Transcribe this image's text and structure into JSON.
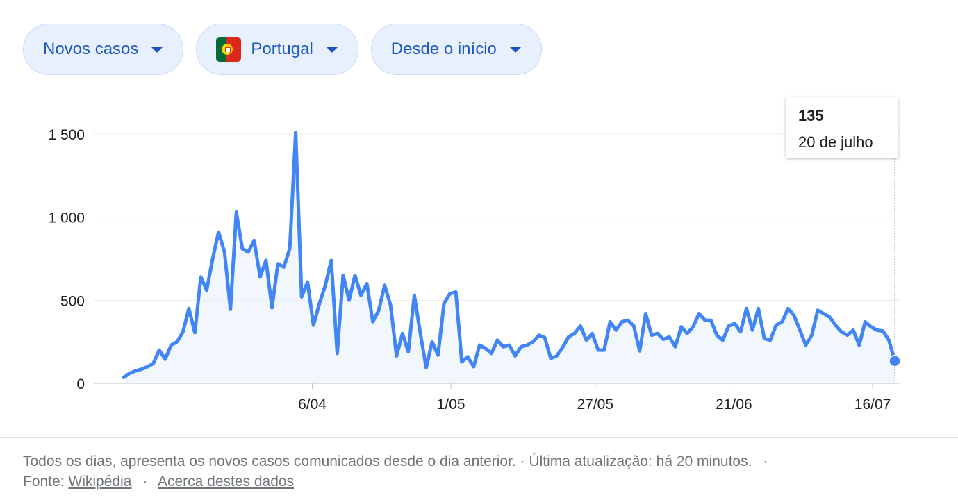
{
  "filters": {
    "metric": "Novos casos",
    "country": "Portugal",
    "range": "Desde o início"
  },
  "tooltip": {
    "value": "135",
    "date": "20 de julho"
  },
  "footer": {
    "description": "Todos os dias, apresenta os novos casos comunicados desde o dia anterior. · Última atualização: há 20 minutos.",
    "source_label": "Fonte:",
    "source_link": "Wikipédia",
    "separator": "·",
    "about_link": "Acerca destes dados"
  },
  "colors": {
    "line": "#4285f4",
    "fill": "#e8f0fe",
    "chip_bg": "#e8f0fe",
    "chip_text": "#1a56c4"
  },
  "chart_data": {
    "type": "area",
    "title": "",
    "xlabel": "",
    "ylabel": "",
    "ylim": [
      0,
      1500
    ],
    "y_ticks": [
      0,
      500,
      1000,
      1500
    ],
    "y_tick_labels": [
      "0",
      "500",
      "1 000",
      "1 500"
    ],
    "x_tick_labels": [
      "6/04",
      "1/05",
      "27/05",
      "21/06",
      "16/07"
    ],
    "x_tick_dates": [
      "2020-04-06",
      "2020-05-01",
      "2020-05-27",
      "2020-06-21",
      "2020-07-16"
    ],
    "grid": true,
    "start_date": "2020-03-03",
    "end_date": "2020-07-20",
    "highlight": {
      "date": "2020-07-20",
      "value": 135
    },
    "series": [
      {
        "name": "",
        "values": [
          35,
          60,
          75,
          85,
          100,
          120,
          200,
          145,
          230,
          250,
          310,
          450,
          305,
          640,
          560,
          750,
          910,
          790,
          445,
          1030,
          810,
          790,
          860,
          640,
          740,
          455,
          720,
          700,
          810,
          1510,
          520,
          610,
          350,
          480,
          590,
          740,
          180,
          650,
          500,
          650,
          530,
          600,
          370,
          440,
          590,
          470,
          165,
          300,
          190,
          530,
          305,
          95,
          250,
          170,
          480,
          540,
          550,
          130,
          160,
          100,
          230,
          210,
          180,
          260,
          220,
          230,
          165,
          220,
          230,
          250,
          290,
          275,
          150,
          165,
          215,
          280,
          300,
          345,
          260,
          300,
          200,
          200,
          370,
          320,
          370,
          380,
          345,
          195,
          420,
          290,
          300,
          265,
          280,
          220,
          340,
          300,
          340,
          420,
          380,
          380,
          290,
          260,
          345,
          360,
          310,
          450,
          320,
          450,
          270,
          260,
          350,
          370,
          450,
          410,
          320,
          230,
          290,
          440,
          420,
          400,
          350,
          310,
          290,
          320,
          230,
          370,
          340,
          320,
          315,
          260,
          135
        ]
      }
    ]
  }
}
